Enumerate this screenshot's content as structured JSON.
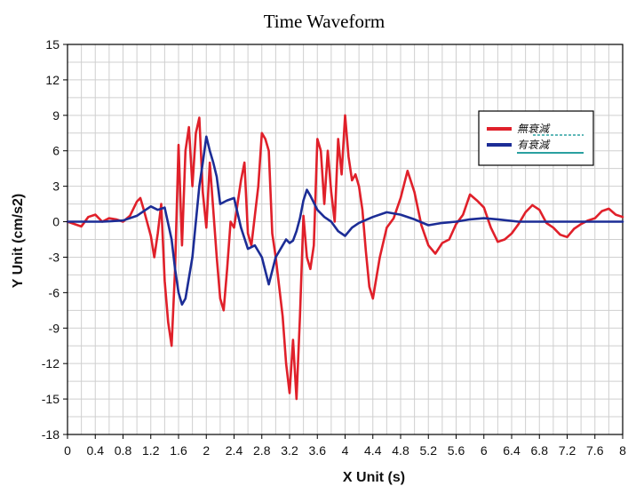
{
  "chart_data": {
    "type": "line",
    "title": "Time Waveform",
    "xlabel": "X Unit (s)",
    "ylabel": "Y Unit (cm/s2)",
    "xlim": [
      0,
      8
    ],
    "ylim": [
      -18,
      15
    ],
    "x_ticks": [
      "0",
      "0.4",
      "0.8",
      "1.2",
      "1.6",
      "2",
      "2.4",
      "2.8",
      "3.2",
      "3.6",
      "4",
      "4.4",
      "4.8",
      "5.2",
      "5.6",
      "6",
      "6.4",
      "6.8",
      "7.2",
      "7.6",
      "8"
    ],
    "y_ticks": [
      "15",
      "12",
      "9",
      "6",
      "3",
      "0",
      "-3",
      "-6",
      "-9",
      "-12",
      "-15",
      "-18"
    ],
    "grid": true,
    "legend_position": "top-right",
    "series": [
      {
        "name": "無衰減",
        "color": "#e0202a",
        "x": [
          0.0,
          0.2,
          0.3,
          0.4,
          0.5,
          0.6,
          0.7,
          0.8,
          0.9,
          1.0,
          1.05,
          1.1,
          1.2,
          1.25,
          1.3,
          1.35,
          1.4,
          1.45,
          1.5,
          1.55,
          1.6,
          1.65,
          1.7,
          1.75,
          1.8,
          1.85,
          1.9,
          1.95,
          2.0,
          2.05,
          2.1,
          2.15,
          2.2,
          2.25,
          2.3,
          2.35,
          2.4,
          2.45,
          2.5,
          2.55,
          2.6,
          2.65,
          2.7,
          2.75,
          2.8,
          2.85,
          2.9,
          2.95,
          3.0,
          3.05,
          3.1,
          3.15,
          3.2,
          3.25,
          3.3,
          3.35,
          3.4,
          3.45,
          3.5,
          3.55,
          3.6,
          3.65,
          3.7,
          3.75,
          3.8,
          3.85,
          3.9,
          3.95,
          4.0,
          4.05,
          4.1,
          4.15,
          4.2,
          4.25,
          4.3,
          4.35,
          4.4,
          4.5,
          4.6,
          4.7,
          4.8,
          4.9,
          5.0,
          5.1,
          5.2,
          5.3,
          5.4,
          5.5,
          5.6,
          5.7,
          5.8,
          5.9,
          6.0,
          6.1,
          6.2,
          6.3,
          6.4,
          6.5,
          6.6,
          6.7,
          6.8,
          6.9,
          7.0,
          7.1,
          7.2,
          7.3,
          7.4,
          7.5,
          7.6,
          7.7,
          7.8,
          7.9,
          8.0
        ],
        "values": [
          0.0,
          -0.4,
          0.4,
          0.6,
          0.0,
          0.3,
          0.2,
          0.0,
          0.5,
          1.7,
          2.0,
          1.0,
          -1.2,
          -3.0,
          -1.0,
          1.5,
          -5.0,
          -8.5,
          -10.5,
          -4.0,
          6.5,
          -2.0,
          6.0,
          8.0,
          3.0,
          7.5,
          8.8,
          2.5,
          -0.5,
          5.0,
          1.0,
          -3.0,
          -6.5,
          -7.5,
          -4.0,
          0.0,
          -0.5,
          1.5,
          3.5,
          5.0,
          -1.0,
          -2.0,
          0.5,
          3.0,
          7.5,
          7.0,
          6.0,
          -1.0,
          -3.0,
          -5.5,
          -8.0,
          -12.0,
          -14.5,
          -10.0,
          -15.0,
          -8.0,
          0.5,
          -3.0,
          -4.0,
          -2.0,
          7.0,
          6.0,
          1.5,
          6.0,
          2.5,
          0.0,
          7.0,
          4.0,
          9.0,
          5.5,
          3.5,
          4.0,
          3.0,
          1.0,
          -2.5,
          -5.5,
          -6.5,
          -3.0,
          -0.5,
          0.3,
          2.0,
          4.3,
          2.5,
          -0.3,
          -2.0,
          -2.7,
          -1.8,
          -1.5,
          -0.2,
          0.6,
          2.3,
          1.8,
          1.2,
          -0.5,
          -1.7,
          -1.5,
          -1.0,
          -0.2,
          0.8,
          1.4,
          1.0,
          -0.1,
          -0.5,
          -1.1,
          -1.3,
          -0.6,
          -0.2,
          0.1,
          0.3,
          0.9,
          1.1,
          0.6,
          0.4
        ]
      },
      {
        "name": "有衰減",
        "color": "#1c2d96",
        "x": [
          0.0,
          0.5,
          0.8,
          1.0,
          1.1,
          1.2,
          1.3,
          1.4,
          1.5,
          1.55,
          1.6,
          1.65,
          1.7,
          1.8,
          1.9,
          1.95,
          2.0,
          2.05,
          2.1,
          2.15,
          2.2,
          2.3,
          2.4,
          2.5,
          2.6,
          2.7,
          2.8,
          2.9,
          3.0,
          3.1,
          3.15,
          3.2,
          3.25,
          3.3,
          3.35,
          3.4,
          3.45,
          3.5,
          3.6,
          3.7,
          3.8,
          3.9,
          4.0,
          4.1,
          4.2,
          4.4,
          4.6,
          4.8,
          5.0,
          5.2,
          5.4,
          5.6,
          5.8,
          6.0,
          6.2,
          6.5,
          7.0,
          7.5,
          8.0
        ],
        "values": [
          0.0,
          0.0,
          0.1,
          0.5,
          0.9,
          1.3,
          1.0,
          1.2,
          -1.5,
          -4.0,
          -6.0,
          -7.0,
          -6.5,
          -3.0,
          3.0,
          5.0,
          7.2,
          6.0,
          5.0,
          3.8,
          1.5,
          1.8,
          2.0,
          -0.5,
          -2.3,
          -2.0,
          -3.0,
          -5.3,
          -3.0,
          -2.0,
          -1.5,
          -1.8,
          -1.6,
          -0.8,
          0.3,
          1.8,
          2.7,
          2.2,
          1.0,
          0.4,
          0.0,
          -0.8,
          -1.2,
          -0.5,
          -0.1,
          0.4,
          0.8,
          0.6,
          0.2,
          -0.3,
          -0.1,
          0.0,
          0.2,
          0.3,
          0.2,
          0.0,
          0.0,
          0.0,
          0.0
        ]
      }
    ]
  }
}
